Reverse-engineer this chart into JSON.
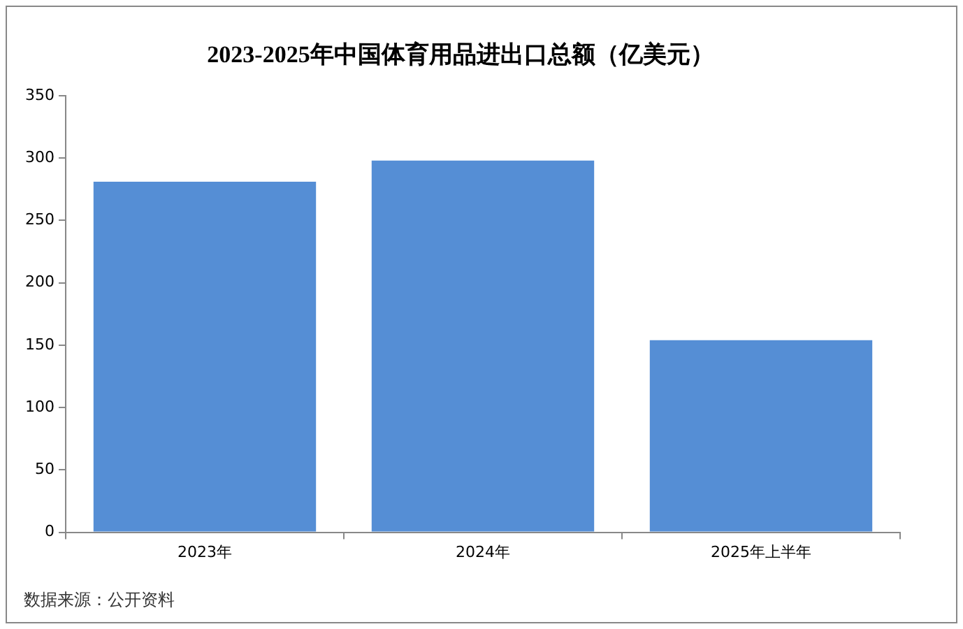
{
  "chart_data": {
    "type": "bar",
    "title": "2023-2025年中国体育用品进出口总额（亿美元）",
    "categories": [
      "2023年",
      "2024年",
      "2025年上半年"
    ],
    "values": [
      281,
      298,
      154
    ],
    "color": "#558ed5",
    "ylim": [
      0,
      350
    ],
    "yticks": [
      0,
      50,
      100,
      150,
      200,
      250,
      300,
      350
    ],
    "grid": false,
    "legend": false,
    "annotations": [
      "数据来源：公开资料"
    ]
  }
}
